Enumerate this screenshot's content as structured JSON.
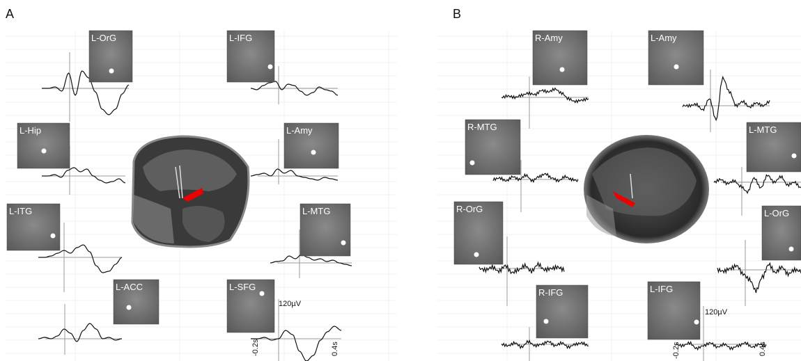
{
  "panels": [
    {
      "label": "A",
      "regions": [
        "L-OrG",
        "L-IFG",
        "L-Hip",
        "L-Amy",
        "L-ITG",
        "L-MTG",
        "L-ACC",
        "L-SFG"
      ],
      "scale": "120µV",
      "time_start": "-0.2s",
      "time_end": "0.4s"
    },
    {
      "label": "B",
      "regions": [
        "R-Amy",
        "L-Amy",
        "R-MTG",
        "L-MTG",
        "R-OrG",
        "L-OrG",
        "R-IFG",
        "L-IFG"
      ],
      "scale": "120µV",
      "time_start": "-0.2s",
      "time_end": "0.4s"
    }
  ]
}
